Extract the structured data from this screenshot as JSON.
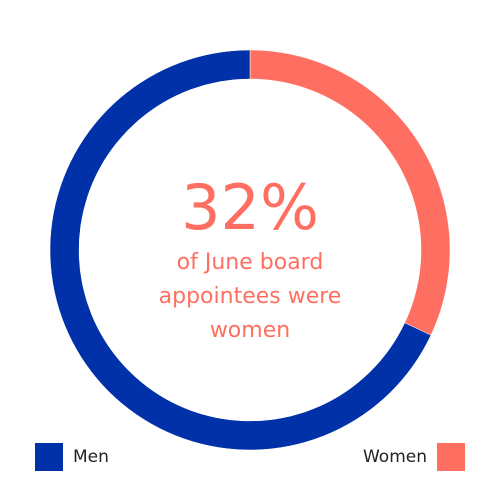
{
  "colors": {
    "men": "#0031A8",
    "women": "#FF6F61",
    "text_accent": "#FF6F61"
  },
  "headline": {
    "value": "32%",
    "caption_line1": "of June board",
    "caption_line2": "appointees were",
    "caption_line3": "women"
  },
  "legend": {
    "men_label": "Men",
    "women_label": "Women"
  },
  "chart_data": {
    "type": "pie",
    "donut": true,
    "categories": [
      "Men",
      "Women"
    ],
    "values": [
      68,
      32
    ],
    "unit": "%",
    "legend_position": "bottom"
  }
}
